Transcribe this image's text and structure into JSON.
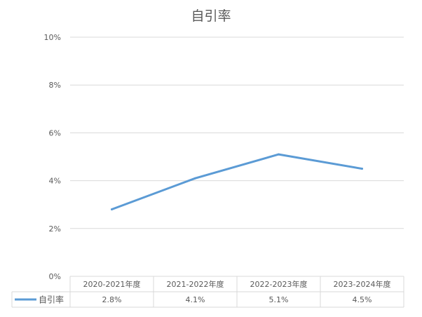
{
  "chart_data": {
    "type": "line",
    "title": "自引率",
    "categories": [
      "2020-2021年度",
      "2021-2022年度",
      "2022-2023年度",
      "2023-2024年度"
    ],
    "series": [
      {
        "name": "自引率",
        "values": [
          2.8,
          4.1,
          5.1,
          4.5
        ],
        "value_labels": [
          "2.8%",
          "4.1%",
          "5.1%",
          "4.5%"
        ],
        "color": "#5b9bd5"
      }
    ],
    "ylim": [
      0,
      10
    ],
    "yticks": [
      "0%",
      "2%",
      "4%",
      "6%",
      "8%",
      "10%"
    ],
    "y_unit": "%",
    "grid": true,
    "legend": "data-table-left",
    "colors": {
      "grid": "#d9d9d9",
      "axis_text": "#595959",
      "title": "#595959"
    }
  }
}
